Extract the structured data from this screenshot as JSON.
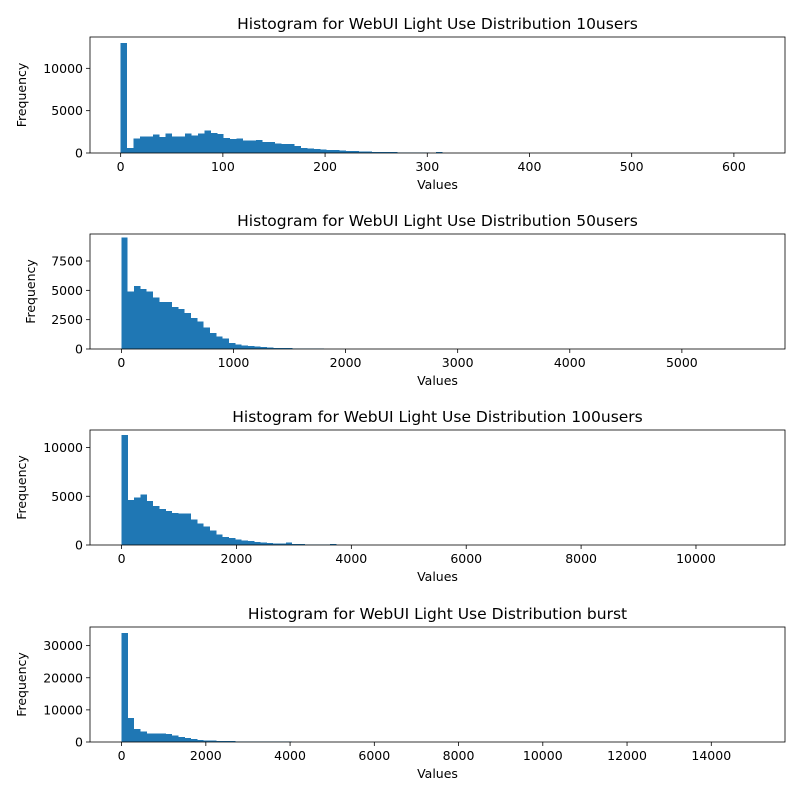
{
  "colors": {
    "bar": "#1f77b4",
    "axis": "#000000",
    "background": "#ffffff"
  },
  "chart_data": [
    {
      "type": "bar",
      "title": "Histogram for WebUI Light Use Distribution 10users",
      "xlabel": "Values",
      "ylabel": "Frequency",
      "xlim": [
        -30,
        650
      ],
      "ylim": [
        0,
        13700
      ],
      "xticks": [
        0,
        100,
        200,
        300,
        400,
        500,
        600
      ],
      "yticks": [
        0,
        5000,
        10000
      ],
      "bin_start": 0,
      "bin_width": 6.3,
      "values": [
        13000,
        600,
        1700,
        1950,
        1950,
        2200,
        1900,
        2300,
        1950,
        1950,
        2300,
        2050,
        2300,
        2650,
        2350,
        2250,
        1800,
        1650,
        1700,
        1500,
        1450,
        1550,
        1300,
        1300,
        1100,
        1050,
        1050,
        800,
        600,
        550,
        450,
        400,
        350,
        330,
        320,
        250,
        220,
        180,
        150,
        140,
        120,
        100,
        90,
        80,
        70,
        60,
        50,
        40,
        30,
        120,
        20,
        15,
        10,
        10,
        8,
        6,
        5,
        5,
        4,
        4,
        3,
        3,
        3,
        2,
        2,
        2,
        2,
        1,
        1,
        1,
        1,
        1,
        1,
        1,
        1,
        1,
        1,
        1,
        1,
        1,
        1,
        1,
        1,
        1,
        1,
        1,
        1,
        1,
        1,
        1,
        1,
        1,
        1,
        1,
        1,
        1,
        1,
        1,
        1,
        1
      ]
    },
    {
      "type": "bar",
      "title": "Histogram for WebUI Light Use Distribution 50users",
      "xlabel": "Values",
      "ylabel": "Frequency",
      "xlim": [
        -280,
        5920
      ],
      "ylim": [
        0,
        9800
      ],
      "xticks": [
        0,
        1000,
        2000,
        3000,
        4000,
        5000
      ],
      "yticks": [
        0,
        2500,
        5000,
        7500
      ],
      "bin_start": 0,
      "bin_width": 56.5,
      "values": [
        9500,
        4900,
        5350,
        5100,
        4900,
        4400,
        4000,
        4000,
        3600,
        3400,
        3050,
        2650,
        2350,
        1850,
        1350,
        1050,
        900,
        500,
        400,
        300,
        250,
        200,
        150,
        120,
        100,
        80,
        70,
        60,
        50,
        40,
        30,
        25,
        20,
        15,
        12,
        10,
        8,
        6,
        5,
        4,
        3,
        3,
        2,
        2,
        2,
        1,
        1,
        1,
        1,
        1,
        1,
        1,
        1,
        1,
        1,
        1,
        1,
        1,
        1,
        1,
        1,
        1,
        1,
        1,
        1,
        1,
        1,
        1,
        1,
        1,
        1,
        1,
        1,
        1,
        1,
        1,
        1,
        1,
        1,
        1,
        1,
        1,
        1,
        1,
        1,
        1,
        1,
        1,
        1,
        1,
        1,
        1,
        1,
        1,
        1,
        1,
        1,
        1,
        1,
        1
      ]
    },
    {
      "type": "bar",
      "title": "Histogram for WebUI Light Use Distribution 100users",
      "xlabel": "Values",
      "ylabel": "Frequency",
      "xlim": [
        -550,
        11550
      ],
      "ylim": [
        0,
        11800
      ],
      "xticks": [
        0,
        2000,
        4000,
        6000,
        8000,
        10000
      ],
      "yticks": [
        0,
        5000,
        10000
      ],
      "bin_start": 0,
      "bin_width": 110,
      "values": [
        11300,
        4600,
        4900,
        5200,
        4500,
        4000,
        3700,
        3500,
        3300,
        3250,
        3250,
        2600,
        2200,
        1900,
        1500,
        1100,
        800,
        700,
        550,
        450,
        400,
        300,
        250,
        200,
        180,
        150,
        280,
        100,
        80,
        60,
        50,
        40,
        30,
        120,
        20,
        15,
        10,
        8,
        6,
        5,
        4,
        3,
        3,
        2,
        2,
        2,
        1,
        1,
        1,
        1,
        1,
        1,
        1,
        1,
        1,
        1,
        1,
        1,
        1,
        1,
        1,
        1,
        1,
        1,
        1,
        1,
        1,
        1,
        1,
        1,
        1,
        1,
        1,
        1,
        1,
        1,
        1,
        1,
        1,
        1,
        1,
        1,
        1,
        1,
        1,
        1,
        1,
        1,
        1,
        1,
        1,
        1,
        1,
        1,
        1,
        1,
        1,
        1,
        1,
        1
      ]
    },
    {
      "type": "bar",
      "title": "Histogram for WebUI Light Use Distribution burst",
      "xlabel": "Values",
      "ylabel": "Frequency",
      "xlim": [
        -750,
        15750
      ],
      "ylim": [
        0,
        35800
      ],
      "xticks": [
        0,
        2000,
        4000,
        6000,
        8000,
        10000,
        12000,
        14000
      ],
      "yticks": [
        0,
        10000,
        20000,
        30000
      ],
      "bin_start": 0,
      "bin_width": 150,
      "values": [
        34000,
        7400,
        4000,
        3300,
        2700,
        2700,
        2700,
        2500,
        2100,
        1600,
        1200,
        900,
        700,
        500,
        400,
        350,
        300,
        250,
        220,
        200,
        180,
        160,
        140,
        120,
        100,
        90,
        80,
        70,
        60,
        50,
        40,
        30,
        25,
        20,
        15,
        12,
        10,
        8,
        6,
        5,
        4,
        3,
        3,
        2,
        2,
        2,
        1,
        1,
        1,
        1,
        1,
        1,
        1,
        1,
        1,
        1,
        1,
        1,
        1,
        1,
        1,
        1,
        1,
        1,
        1,
        1,
        1,
        1,
        1,
        1,
        1,
        1,
        1,
        1,
        1,
        1,
        1,
        1,
        1,
        1,
        1,
        1,
        1,
        1,
        1,
        1,
        1,
        1,
        1,
        1,
        1,
        1,
        1,
        1,
        1,
        1,
        1,
        1,
        1,
        1
      ]
    }
  ]
}
